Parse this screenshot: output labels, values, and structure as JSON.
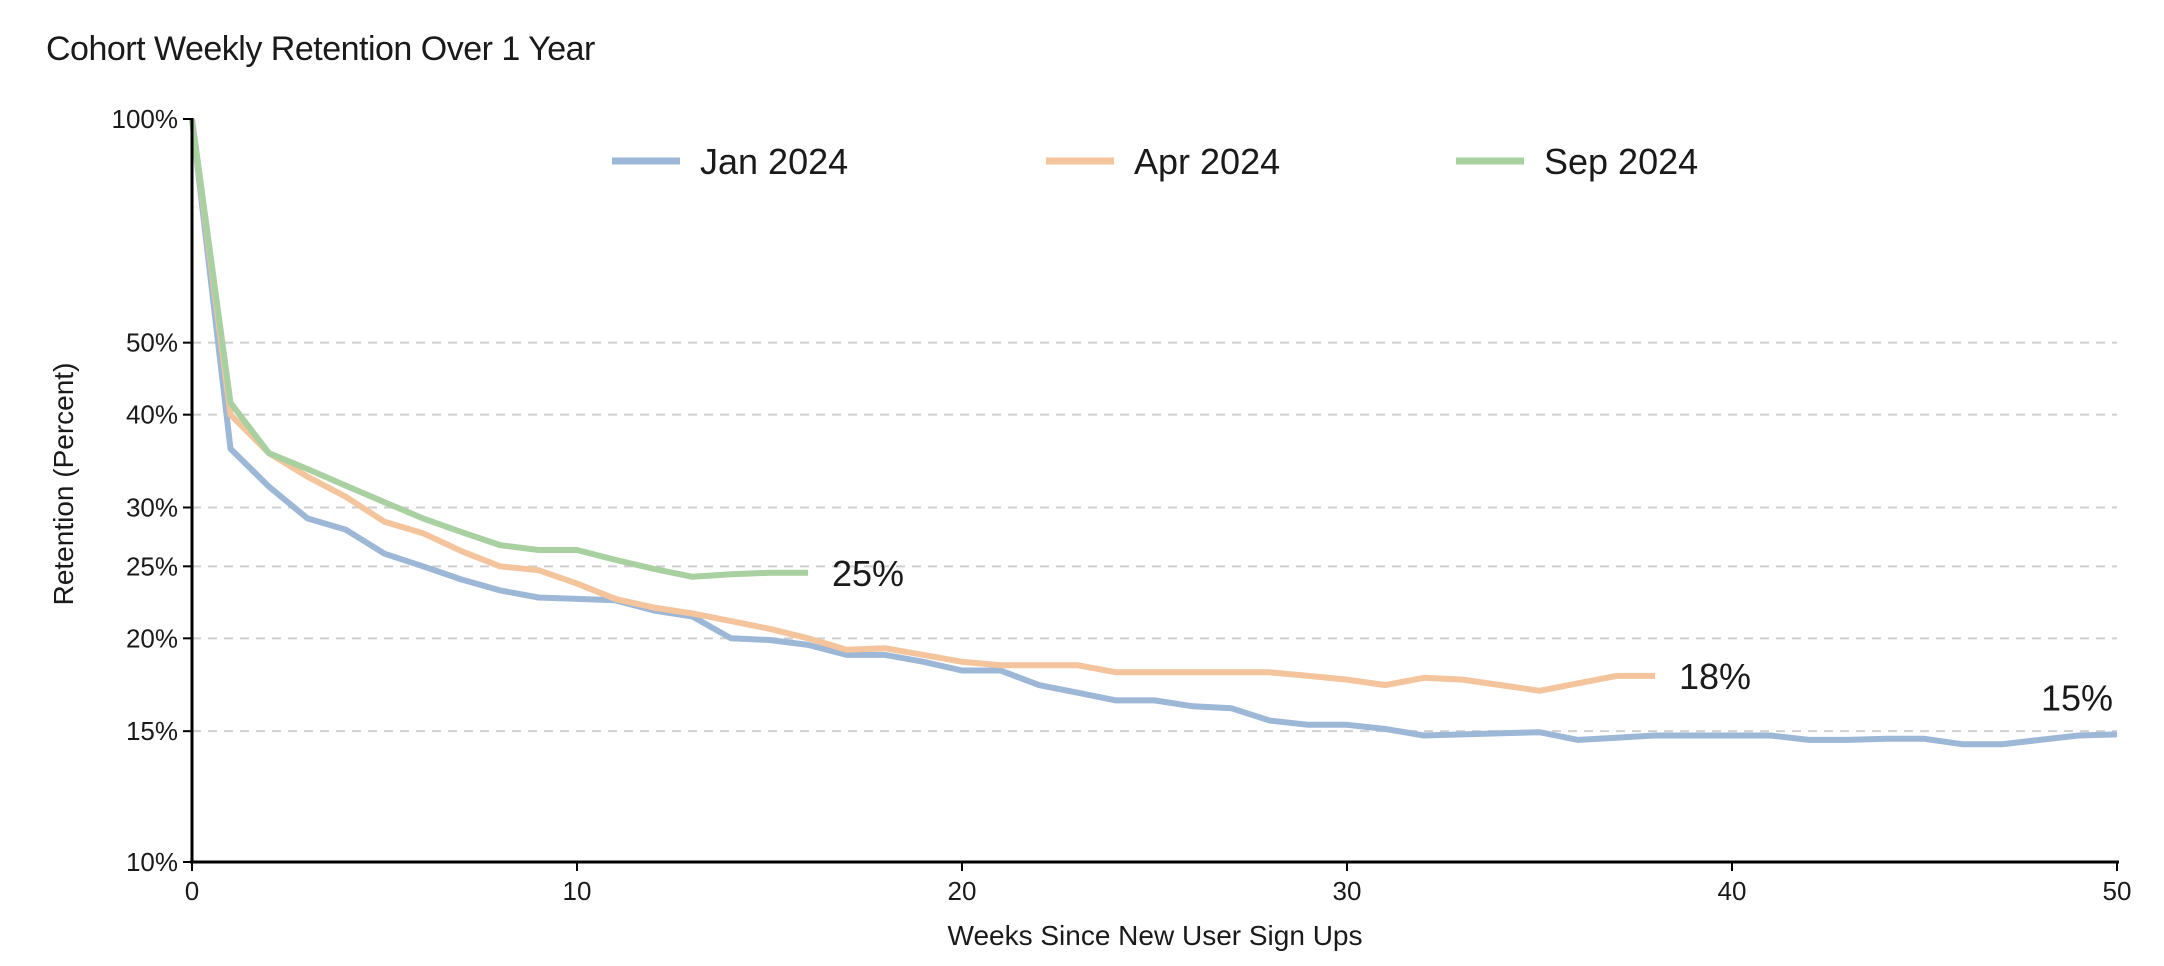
{
  "chart_data": {
    "type": "line",
    "title": "Cohort Weekly Retention Over 1 Year",
    "xlabel": "Weeks Since New User Sign Ups",
    "ylabel": "Retention (Percent)",
    "xlim": [
      0,
      50
    ],
    "ylim": [
      10,
      100
    ],
    "yscale": "log",
    "xticks": [
      0,
      10,
      20,
      30,
      40,
      50
    ],
    "xtick_labels": [
      "0",
      "10",
      "20",
      "30",
      "40",
      "50"
    ],
    "yticks": [
      10,
      15,
      20,
      25,
      30,
      40,
      50,
      100
    ],
    "ytick_labels": [
      "10%",
      "15%",
      "20%",
      "25%",
      "30%",
      "40%",
      "50%",
      "100%"
    ],
    "grid": "horizontal dashed at 15, 20, 25, 30, 40, 50",
    "legend": "top-center",
    "series": [
      {
        "name": "Jan 2024",
        "color": "#9db7d6",
        "end_label": "15%",
        "x": [
          0,
          1,
          2,
          3,
          4,
          5,
          6,
          7,
          8,
          9,
          10,
          11,
          12,
          13,
          14,
          15,
          16,
          17,
          18,
          19,
          20,
          21,
          22,
          23,
          24,
          25,
          26,
          27,
          28,
          29,
          30,
          31,
          32,
          33,
          34,
          35,
          36,
          37,
          38,
          39,
          40,
          41,
          42,
          43,
          44,
          45,
          46,
          47,
          48,
          49,
          50
        ],
        "y": [
          100,
          36,
          32,
          29,
          28,
          26,
          25,
          24,
          23.2,
          22.7,
          22.6,
          22.5,
          21.8,
          21.4,
          20.0,
          19.9,
          19.6,
          19.0,
          19.0,
          18.6,
          18.1,
          18.1,
          17.3,
          16.9,
          16.5,
          16.5,
          16.2,
          16.1,
          15.5,
          15.3,
          15.3,
          15.1,
          14.8,
          14.85,
          14.9,
          14.95,
          14.6,
          14.7,
          14.8,
          14.8,
          14.8,
          14.8,
          14.6,
          14.6,
          14.65,
          14.65,
          14.4,
          14.4,
          14.6,
          14.8,
          14.85
        ]
      },
      {
        "name": "Apr 2024",
        "color": "#f4c49c",
        "end_label": "18%",
        "x": [
          0,
          1,
          2,
          3,
          4,
          5,
          6,
          7,
          8,
          9,
          10,
          11,
          12,
          13,
          14,
          15,
          16,
          17,
          18,
          19,
          20,
          21,
          22,
          23,
          24,
          25,
          26,
          27,
          28,
          29,
          30,
          31,
          32,
          33,
          34,
          35,
          36,
          37,
          38
        ],
        "y": [
          100,
          40,
          35.5,
          33,
          31,
          28.7,
          27.7,
          26.2,
          25.0,
          24.7,
          23.7,
          22.6,
          22.0,
          21.6,
          21.1,
          20.6,
          20.0,
          19.3,
          19.4,
          19.0,
          18.6,
          18.4,
          18.4,
          18.4,
          18.0,
          18.0,
          18.0,
          18.0,
          18.0,
          17.8,
          17.6,
          17.3,
          17.7,
          17.6,
          17.3,
          17.0,
          17.4,
          17.8,
          17.8
        ]
      },
      {
        "name": "Sep 2024",
        "color": "#a8d0a0",
        "end_label": "25%",
        "x": [
          0,
          1,
          2,
          3,
          4,
          5,
          6,
          7,
          8,
          9,
          10,
          11,
          12,
          13,
          14,
          15,
          16
        ],
        "y": [
          100,
          41.5,
          35.5,
          33.8,
          32.1,
          30.5,
          29.0,
          27.8,
          26.7,
          26.3,
          26.3,
          25.5,
          24.8,
          24.2,
          24.4,
          24.5,
          24.5
        ]
      }
    ]
  }
}
